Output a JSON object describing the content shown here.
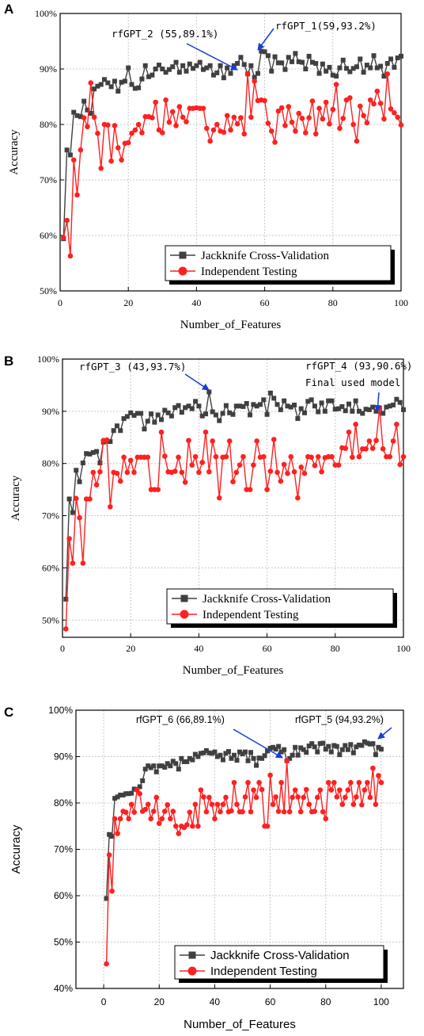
{
  "chart_data": [
    {
      "type": "line",
      "panel": "A",
      "xlabel": "Number_of_Features",
      "ylabel": "Accuracy",
      "xlim": [
        0,
        100
      ],
      "ylim": [
        50,
        100
      ],
      "xticks": [
        "0",
        "20",
        "40",
        "60",
        "80",
        "100"
      ],
      "yticks": [
        "50%",
        "60%",
        "70%",
        "80%",
        "90%",
        "100%"
      ],
      "grid": true,
      "legend_position": "bottom-right",
      "x": [
        1,
        2,
        3,
        4,
        5,
        6,
        7,
        8,
        9,
        10,
        11,
        12,
        13,
        14,
        15,
        16,
        17,
        18,
        19,
        20,
        21,
        22,
        23,
        24,
        25,
        26,
        27,
        28,
        29,
        30,
        31,
        32,
        33,
        34,
        35,
        36,
        37,
        38,
        39,
        40,
        41,
        42,
        43,
        44,
        45,
        46,
        47,
        48,
        49,
        50,
        51,
        52,
        53,
        54,
        55,
        56,
        57,
        58,
        59,
        60,
        61,
        62,
        63,
        64,
        65,
        66,
        67,
        68,
        69,
        70,
        71,
        72,
        73,
        74,
        75,
        76,
        77,
        78,
        79,
        80,
        81,
        82,
        83,
        84,
        85,
        86,
        87,
        88,
        89,
        90,
        91,
        92,
        93,
        94,
        95,
        96,
        97,
        98,
        99,
        100
      ],
      "series": [
        {
          "name": "Jackknife Cross-Validation",
          "color": "#404040",
          "marker": "square",
          "values": [
            59.4,
            75.4,
            74.5,
            82.2,
            81.6,
            81.4,
            84.2,
            82.6,
            82.0,
            86.4,
            86.9,
            87.2,
            88.1,
            87.5,
            86.8,
            87.8,
            86.0,
            87.6,
            87.8,
            90.2,
            87.2,
            86.5,
            86.6,
            88.2,
            90.6,
            88.6,
            88.9,
            90.0,
            90.7,
            90.0,
            89.4,
            89.9,
            90.4,
            91.2,
            89.4,
            90.6,
            89.6,
            90.9,
            90.1,
            90.6,
            91.2,
            89.9,
            90.2,
            90.6,
            88.9,
            89.3,
            90.6,
            88.4,
            90.2,
            89.2,
            90.6,
            91.0,
            92.1,
            90.8,
            89.1,
            90.6,
            88.5,
            89.2,
            93.2,
            93.1,
            92.4,
            89.6,
            92.2,
            91.1,
            91.1,
            89.9,
            92.1,
            91.3,
            92.8,
            91.3,
            91.2,
            90.0,
            92.3,
            91.2,
            91.0,
            89.2,
            90.9,
            89.6,
            90.3,
            88.9,
            88.7,
            90.2,
            91.6,
            90.1,
            89.5,
            90.1,
            90.4,
            91.8,
            89.4,
            90.7,
            90.2,
            92.4,
            90.2,
            90.5,
            88.7,
            91.0,
            91.8,
            90.3,
            92.0,
            92.3
          ]
        },
        {
          "name": "Independent Testing",
          "color": "#ff2020",
          "marker": "circle",
          "values": [
            59.6,
            62.7,
            56.3,
            73.6,
            67.3,
            75.4,
            81.2,
            79.6,
            87.5,
            81.3,
            78.4,
            72.1,
            80.0,
            79.9,
            73.4,
            79.8,
            75.8,
            73.6,
            76.6,
            76.7,
            78.4,
            79.0,
            80.0,
            78.5,
            81.4,
            81.4,
            81.2,
            84.0,
            79.0,
            78.5,
            84.4,
            80.4,
            82.3,
            79.8,
            83.2,
            81.3,
            80.5,
            82.9,
            82.9,
            83.0,
            82.9,
            82.9,
            79.3,
            77.0,
            79.0,
            80.0,
            78.8,
            78.6,
            81.6,
            79.0,
            81.3,
            80.1,
            81.2,
            78.3,
            89.1,
            81.3,
            87.8,
            84.3,
            84.4,
            84.3,
            80.2,
            78.8,
            76.8,
            82.4,
            83.0,
            79.8,
            83.2,
            80.4,
            78.8,
            82.0,
            81.1,
            78.5,
            81.2,
            84.2,
            78.3,
            82.9,
            81.0,
            84.0,
            80.1,
            82.7,
            87.2,
            79.3,
            81.1,
            84.4,
            84.8,
            80.0,
            77.0,
            83.3,
            81.6,
            80.3,
            84.4,
            83.7,
            86.0,
            83.8,
            81.0,
            89.1,
            82.8,
            82.1,
            81.3,
            79.9
          ]
        }
      ],
      "annotations": [
        {
          "text": "rfGPT_2 (55,89.1%)",
          "x": 55,
          "y": 89.1
        },
        {
          "text": "rfGPT_1(59,93.2%)",
          "x": 59,
          "y": 93.2
        }
      ]
    },
    {
      "type": "line",
      "panel": "B",
      "xlabel": "Number_of_Features",
      "ylabel": "Accuracy",
      "xlim": [
        0,
        100
      ],
      "ylim": [
        46.7,
        100
      ],
      "xticks": [
        "0",
        "20",
        "40",
        "60",
        "80",
        "100"
      ],
      "yticks": [
        "50%",
        "60%",
        "70%",
        "80%",
        "90%",
        "100%"
      ],
      "grid": true,
      "legend_position": "bottom-right",
      "x": [
        1,
        2,
        3,
        4,
        5,
        6,
        7,
        8,
        9,
        10,
        11,
        12,
        13,
        14,
        15,
        16,
        17,
        18,
        19,
        20,
        21,
        22,
        23,
        24,
        25,
        26,
        27,
        28,
        29,
        30,
        31,
        32,
        33,
        34,
        35,
        36,
        37,
        38,
        39,
        40,
        41,
        42,
        43,
        44,
        45,
        46,
        47,
        48,
        49,
        50,
        51,
        52,
        53,
        54,
        55,
        56,
        57,
        58,
        59,
        60,
        61,
        62,
        63,
        64,
        65,
        66,
        67,
        68,
        69,
        70,
        71,
        72,
        73,
        74,
        75,
        76,
        77,
        78,
        79,
        80,
        81,
        82,
        83,
        84,
        85,
        86,
        87,
        88,
        89,
        90,
        91,
        92,
        93,
        94,
        95,
        96,
        97,
        98,
        99,
        100
      ],
      "series": [
        {
          "name": "Jackknife Cross-Validation",
          "color": "#404040",
          "marker": "square",
          "values": [
            54.0,
            73.2,
            70.6,
            78.7,
            76.5,
            80.1,
            81.9,
            81.8,
            82.1,
            82.3,
            80.1,
            84.1,
            84.3,
            84.2,
            86.3,
            87.2,
            86.3,
            88.6,
            89.0,
            89.7,
            89.2,
            89.6,
            89.6,
            86.6,
            88.1,
            89.5,
            87.9,
            89.3,
            88.4,
            90.2,
            89.7,
            89.1,
            90.7,
            91.1,
            89.8,
            90.7,
            91.0,
            90.5,
            91.9,
            91.0,
            89.1,
            89.5,
            93.7,
            89.9,
            89.3,
            88.2,
            89.6,
            91.1,
            89.7,
            89.4,
            91.0,
            91.0,
            90.9,
            91.5,
            89.3,
            91.3,
            91.0,
            91.3,
            92.2,
            89.4,
            93.5,
            92.5,
            91.3,
            90.3,
            92.0,
            91.0,
            90.8,
            91.2,
            88.6,
            90.5,
            89.7,
            91.9,
            92.2,
            91.0,
            89.9,
            91.6,
            90.0,
            92.0,
            92.0,
            90.4,
            90.5,
            90.9,
            90.1,
            91.4,
            90.0,
            92.0,
            90.0,
            89.6,
            90.4,
            90.3,
            90.8,
            90.0,
            90.6,
            89.6,
            90.8,
            91.0,
            91.2,
            92.3,
            91.7,
            90.3
          ]
        },
        {
          "name": "Independent Testing",
          "color": "#ff2020",
          "marker": "circle",
          "values": [
            48.3,
            65.6,
            60.9,
            73.3,
            69.6,
            60.9,
            73.2,
            73.2,
            78.3,
            75.9,
            78.4,
            84.4,
            84.5,
            71.7,
            78.3,
            78.1,
            76.6,
            81.2,
            78.3,
            80.6,
            78.3,
            81.2,
            81.2,
            81.2,
            81.2,
            75.0,
            75.0,
            75.0,
            86.0,
            81.4,
            78.4,
            78.3,
            78.5,
            81.2,
            78.3,
            76.4,
            84.4,
            79.7,
            81.3,
            78.3,
            80.2,
            86.0,
            78.4,
            84.3,
            81.3,
            73.4,
            81.2,
            81.3,
            84.3,
            76.5,
            78.3,
            79.7,
            81.3,
            75.0,
            75.0,
            79.7,
            84.3,
            81.2,
            81.3,
            75.0,
            78.5,
            84.6,
            78.3,
            76.6,
            79.8,
            78.1,
            81.3,
            78.4,
            73.4,
            79.3,
            78.1,
            81.3,
            81.2,
            79.6,
            81.3,
            78.4,
            81.1,
            81.3,
            81.3,
            79.7,
            79.7,
            83.0,
            82.9,
            86.0,
            81.2,
            87.5,
            81.3,
            82.8,
            82.8,
            84.3,
            82.9,
            84.4,
            90.6,
            82.8,
            81.3,
            81.3,
            84.3,
            87.5,
            79.8,
            81.3
          ]
        }
      ],
      "annotations": [
        {
          "text": "rfGPT_3 (43,93.7%)",
          "x": 43,
          "y": 93.7
        },
        {
          "text": "rfGPT_4 (93,90.6%)",
          "x": 93,
          "y": 90.6
        },
        {
          "text": "Final used model",
          "x": 93,
          "y": 90.6
        }
      ]
    },
    {
      "type": "line",
      "panel": "C",
      "xlabel": "Number_of_Features",
      "ylabel": "Accuracy",
      "xlim": [
        -10,
        108
      ],
      "ylim": [
        40,
        100
      ],
      "xticks": [
        "0",
        "20",
        "40",
        "60",
        "80",
        "100"
      ],
      "yticks": [
        "40%",
        "50%",
        "60%",
        "70%",
        "80%",
        "90%",
        "100%"
      ],
      "grid": true,
      "legend_position": "bottom-right",
      "x": [
        1,
        2,
        3,
        4,
        5,
        6,
        7,
        8,
        9,
        10,
        11,
        12,
        13,
        14,
        15,
        16,
        17,
        18,
        19,
        20,
        21,
        22,
        23,
        24,
        25,
        26,
        27,
        28,
        29,
        30,
        31,
        32,
        33,
        34,
        35,
        36,
        37,
        38,
        39,
        40,
        41,
        42,
        43,
        44,
        45,
        46,
        47,
        48,
        49,
        50,
        51,
        52,
        53,
        54,
        55,
        56,
        57,
        58,
        59,
        60,
        61,
        62,
        63,
        64,
        65,
        66,
        67,
        68,
        69,
        70,
        71,
        72,
        73,
        74,
        75,
        76,
        77,
        78,
        79,
        80,
        81,
        82,
        83,
        84,
        85,
        86,
        87,
        88,
        89,
        90,
        91,
        92,
        93,
        94,
        95,
        96,
        97,
        98,
        99,
        100
      ],
      "series": [
        {
          "name": "Jackknife Cross-Validation",
          "color": "#404040",
          "marker": "square",
          "values": [
            59.4,
            73.2,
            72.8,
            81.0,
            81.3,
            81.7,
            81.7,
            82.0,
            82.0,
            82.1,
            83.0,
            82.9,
            83.5,
            84.8,
            87.3,
            88.0,
            87.6,
            88.0,
            86.7,
            88.0,
            88.0,
            87.7,
            88.5,
            88.0,
            89.0,
            88.5,
            87.3,
            89.6,
            88.9,
            88.9,
            89.6,
            89.3,
            90.5,
            90.0,
            90.7,
            90.8,
            91.3,
            90.8,
            90.7,
            91.0,
            90.0,
            90.3,
            89.3,
            90.7,
            91.1,
            89.6,
            90.3,
            89.2,
            91.0,
            90.6,
            91.0,
            89.1,
            90.9,
            89.6,
            88.1,
            89.7,
            89.6,
            90.2,
            91.2,
            91.8,
            92.0,
            91.6,
            92.2,
            91.0,
            91.5,
            89.1,
            89.6,
            90.3,
            92.0,
            90.3,
            91.9,
            91.5,
            90.9,
            92.3,
            92.8,
            92.1,
            91.0,
            92.8,
            92.9,
            91.6,
            92.2,
            91.0,
            92.4,
            92.2,
            90.4,
            91.5,
            92.4,
            91.5,
            92.6,
            90.8,
            92.1,
            92.5,
            92.4,
            93.2,
            92.9,
            92.7,
            92.8,
            90.4,
            92.0,
            91.6
          ]
        },
        {
          "name": "Independent Testing",
          "color": "#ff2020",
          "marker": "circle",
          "values": [
            45.3,
            68.8,
            61.0,
            76.6,
            73.4,
            76.6,
            78.2,
            78.0,
            76.6,
            79.7,
            78.0,
            82.8,
            82.0,
            78.2,
            78.6,
            79.7,
            76.6,
            78.2,
            81.2,
            75.6,
            76.6,
            78.2,
            79.6,
            76.6,
            78.2,
            75.0,
            73.4,
            75.0,
            74.7,
            75.3,
            78.0,
            75.0,
            79.7,
            75.0,
            82.8,
            81.3,
            78.1,
            81.2,
            79.7,
            76.6,
            79.7,
            78.1,
            79.7,
            81.2,
            78.1,
            78.3,
            84.4,
            79.7,
            78.1,
            78.1,
            81.3,
            84.4,
            78.1,
            82.8,
            81.2,
            84.4,
            82.9,
            75.0,
            75.0,
            86.0,
            79.7,
            81.3,
            78.2,
            84.4,
            78.1,
            89.1,
            78.1,
            81.2,
            82.8,
            81.3,
            78.1,
            81.2,
            82.9,
            79.7,
            78.1,
            78.2,
            81.2,
            82.8,
            78.1,
            76.6,
            84.4,
            82.8,
            84.4,
            81.3,
            82.8,
            79.7,
            81.2,
            82.8,
            84.4,
            79.7,
            81.3,
            84.4,
            79.6,
            82.8,
            84.4,
            81.2,
            87.5,
            79.7,
            85.9,
            84.4
          ]
        }
      ],
      "annotations": [
        {
          "text": "rfGPT_6 (66,89.1%)",
          "x": 66,
          "y": 89.1
        },
        {
          "text": "rfGPT_5 (94,93.2%)",
          "x": 94,
          "y": 93.2
        }
      ]
    }
  ]
}
